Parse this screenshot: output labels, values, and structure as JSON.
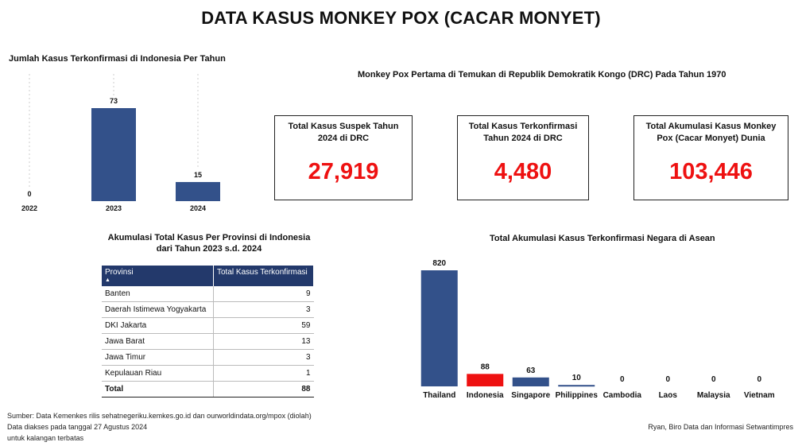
{
  "title": "DATA KASUS MONKEY POX (CACAR MONYET)",
  "drc_heading": "Monkey Pox Pertama di Temukan di Republik Demokratik Kongo (DRC) Pada Tahun 1970",
  "cards": [
    {
      "label": "Total Kasus Suspek Tahun 2024 di DRC",
      "value": "27,919"
    },
    {
      "label": "Total Kasus Terkonfirmasi Tahun 2024 di DRC",
      "value": "4,480"
    },
    {
      "label": "Total Akumulasi Kasus Monkey Pox (Cacar Monyet) Dunia",
      "value": "103,446"
    }
  ],
  "colors": {
    "bar": "#33518a",
    "highlight": "#ee1111",
    "header": "#23396b"
  },
  "table": {
    "title_line1": "Akumulasi Total Kasus Per Provinsi di Indonesia",
    "title_line2": "dari Tahun 2023 s.d. 2024",
    "col1": "Provinsi",
    "col2": "Total Kasus Terkonfirmasi",
    "sort_icon": "sort-ascending-icon",
    "rows": [
      {
        "provinsi": "Banten",
        "total": "9"
      },
      {
        "provinsi": "Daerah Istimewa Yogyakarta",
        "total": "3"
      },
      {
        "provinsi": "DKI Jakarta",
        "total": "59"
      },
      {
        "provinsi": "Jawa Barat",
        "total": "13"
      },
      {
        "provinsi": "Jawa Timur",
        "total": "3"
      },
      {
        "provinsi": "Kepulauan Riau",
        "total": "1"
      }
    ],
    "total_label": "Total",
    "total_value": "88"
  },
  "chart_data": [
    {
      "type": "bar",
      "title": "Jumlah Kasus Terkonfirmasi di Indonesia Per Tahun",
      "categories": [
        "2022",
        "2023",
        "2024"
      ],
      "values": [
        0,
        73,
        15
      ],
      "xlabel": "",
      "ylabel": "",
      "ylim": [
        0,
        73
      ],
      "grid": false
    },
    {
      "type": "bar",
      "title": "Total Akumulasi Kasus Terkonfirmasi Negara di Asean",
      "categories": [
        "Thailand",
        "Indonesia",
        "Singapore",
        "Philippines",
        "Cambodia",
        "Laos",
        "Malaysia",
        "Vietnam"
      ],
      "values": [
        820,
        88,
        63,
        10,
        0,
        0,
        0,
        0
      ],
      "highlight": "Indonesia",
      "xlabel": "",
      "ylabel": "",
      "ylim": [
        0,
        820
      ],
      "grid": false
    }
  ],
  "footer": {
    "source": "Sumber: Data Kemenkes rilis sehatnegeriku.kemkes.go.id dan ourworldindata.org/mpox (diolah)",
    "accessed": "Data diakses pada tanggal 27 Agustus 2024",
    "restricted": "untuk kalangan terbatas",
    "author": "Ryan, Biro Data dan Informasi Setwantimpres"
  }
}
